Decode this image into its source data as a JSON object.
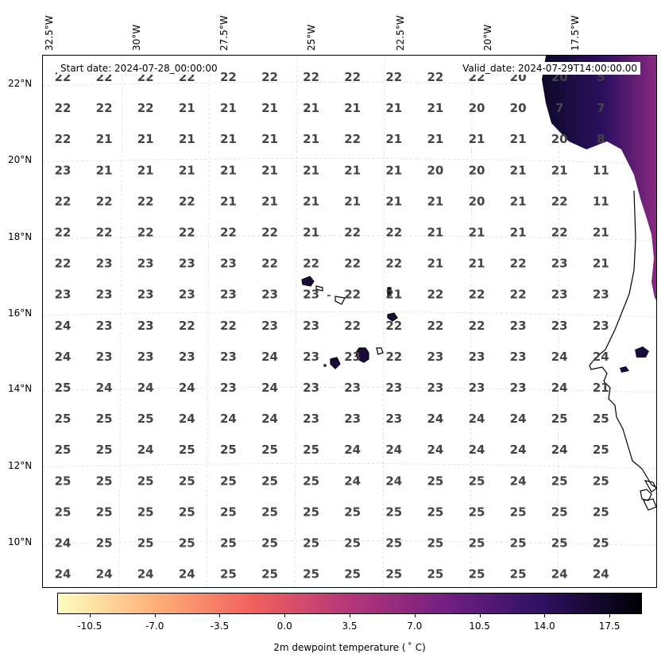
{
  "map": {
    "start_date": "Start date: 2024-07-28_00:00:00",
    "valid_date": "Valid_date: 2024-07-29T14:00:00.00",
    "lon_labels": [
      "32.5°W",
      "30°W",
      "27.5°W",
      "25°W",
      "22.5°W",
      "20°W",
      "17.5°W"
    ],
    "lat_labels": [
      "22°N",
      "20°N",
      "18°N",
      "16°N",
      "14°N",
      "12°N",
      "10°N"
    ],
    "value_grid": [
      [
        "22",
        "22",
        "22",
        "22",
        "22",
        "22",
        "22",
        "22",
        "22",
        "22",
        "22",
        "20",
        "20",
        "5"
      ],
      [
        "22",
        "22",
        "22",
        "21",
        "21",
        "21",
        "21",
        "21",
        "21",
        "21",
        "20",
        "20",
        "7",
        "7"
      ],
      [
        "22",
        "21",
        "21",
        "21",
        "21",
        "21",
        "21",
        "22",
        "21",
        "21",
        "21",
        "21",
        "20",
        "8"
      ],
      [
        "23",
        "21",
        "21",
        "21",
        "21",
        "21",
        "21",
        "21",
        "21",
        "20",
        "20",
        "21",
        "21",
        "11"
      ],
      [
        "22",
        "22",
        "22",
        "22",
        "21",
        "21",
        "21",
        "21",
        "21",
        "21",
        "20",
        "21",
        "22",
        "11"
      ],
      [
        "22",
        "22",
        "22",
        "22",
        "22",
        "22",
        "21",
        "22",
        "22",
        "21",
        "21",
        "21",
        "22",
        "21"
      ],
      [
        "22",
        "23",
        "23",
        "23",
        "23",
        "22",
        "22",
        "22",
        "22",
        "21",
        "21",
        "22",
        "23",
        "21"
      ],
      [
        "23",
        "23",
        "23",
        "23",
        "23",
        "23",
        "23",
        "22",
        "21",
        "22",
        "22",
        "22",
        "23",
        "23"
      ],
      [
        "24",
        "23",
        "23",
        "22",
        "22",
        "23",
        "23",
        "22",
        "22",
        "22",
        "22",
        "23",
        "23",
        "23"
      ],
      [
        "24",
        "23",
        "23",
        "23",
        "23",
        "24",
        "23",
        "23",
        "22",
        "23",
        "23",
        "23",
        "24",
        "24"
      ],
      [
        "25",
        "24",
        "24",
        "24",
        "23",
        "24",
        "23",
        "23",
        "23",
        "23",
        "23",
        "23",
        "24",
        "21"
      ],
      [
        "25",
        "25",
        "25",
        "24",
        "24",
        "24",
        "23",
        "23",
        "23",
        "24",
        "24",
        "24",
        "25",
        "25"
      ],
      [
        "25",
        "25",
        "24",
        "25",
        "25",
        "25",
        "25",
        "24",
        "24",
        "24",
        "24",
        "24",
        "24",
        "25"
      ],
      [
        "25",
        "25",
        "25",
        "25",
        "25",
        "25",
        "25",
        "24",
        "24",
        "25",
        "25",
        "24",
        "25",
        "25"
      ],
      [
        "25",
        "25",
        "25",
        "25",
        "25",
        "25",
        "25",
        "25",
        "25",
        "25",
        "25",
        "25",
        "25",
        "25"
      ],
      [
        "24",
        "25",
        "25",
        "25",
        "25",
        "25",
        "25",
        "25",
        "25",
        "25",
        "25",
        "25",
        "25",
        "25"
      ],
      [
        "24",
        "24",
        "24",
        "24",
        "25",
        "25",
        "25",
        "25",
        "25",
        "25",
        "25",
        "25",
        "24",
        "24"
      ]
    ]
  },
  "colorbar": {
    "title": "2m dewpoint temperature ($^\\circ$C)",
    "title_display": "2m dewpoint temperature ( ˚ C)",
    "ticks": [
      "-10.5",
      "-7.0",
      "-3.5",
      "0.0",
      "3.5",
      "7.0",
      "10.5",
      "14.0",
      "17.5"
    ],
    "range": [
      -12.25,
      19.25
    ],
    "colormap": [
      "#fcfdbf",
      "#feb078",
      "#f1605d",
      "#b5367a",
      "#721f81",
      "#2d1160",
      "#000004"
    ]
  }
}
